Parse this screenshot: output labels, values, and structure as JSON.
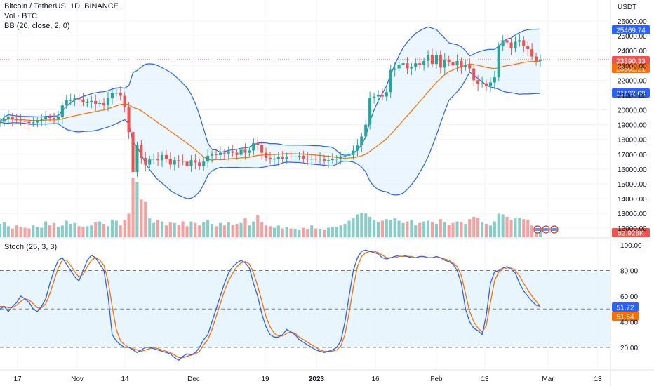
{
  "header": {
    "symbol_line": "Bitcoin / TetherUS, 1D, BINANCE",
    "volume_line": "Vol · BTC",
    "bb_line": "BB (20, close, 2, 0)"
  },
  "stoch_header": {
    "label": "Stoch (25, 3, 3)"
  },
  "colors": {
    "up": "#26a69a",
    "down": "#ef5350",
    "bb_band": "#2962ff",
    "bb_basis": "#ff6d00",
    "bb_fill": "#e3f2fd",
    "stoch_k": "#2962ff",
    "stoch_d": "#ff6d00",
    "stoch_fill": "#e3f2fd",
    "grid": "#f0f3fa",
    "axis_text": "#131722"
  },
  "chart_data": [
    {
      "type": "candlestick",
      "title": "Bitcoin / TetherUS, 1D, BINANCE",
      "y_axis_unit": "USDT",
      "y_ticks": [
        "12000.00",
        "13000.00",
        "14000.00",
        "15000.00",
        "16000.00",
        "17000.00",
        "18000.00",
        "19000.00",
        "20000.00",
        "21000.00",
        "22000.00",
        "23000.00",
        "24000.00",
        "25000.00",
        "26000.00"
      ],
      "ylim": [
        11500,
        26700
      ],
      "x_ticks": [
        "17",
        "Nov",
        "14",
        "Dec",
        "19",
        "2023",
        "16",
        "Feb",
        "13",
        "Mar",
        "13"
      ],
      "price_labels": [
        {
          "value": "25469.74",
          "color": "#2962ff"
        },
        {
          "value": "23390.33",
          "color": "#ef5350"
        },
        {
          "value": "23301.21",
          "color": "#ff6d00"
        },
        {
          "value": "21132.68",
          "color": "#2962ff"
        },
        {
          "value": "52.928K",
          "color": "#ef5350"
        }
      ],
      "last_price": 23390.33,
      "volume_last": "52.928K",
      "close_series": [
        19200,
        19400,
        19550,
        19350,
        19300,
        19250,
        19200,
        19100,
        19150,
        19300,
        19350,
        19500,
        19450,
        19400,
        19500,
        20300,
        20650,
        20650,
        20800,
        20700,
        20500,
        20500,
        20600,
        20400,
        20450,
        20300,
        20800,
        21150,
        21150,
        20950,
        20200,
        18500,
        15800,
        17600,
        16750,
        16300,
        16650,
        16700,
        16600,
        16950,
        16700,
        16300,
        16600,
        16550,
        16500,
        16200,
        16600,
        16450,
        16200,
        16500,
        16900,
        17000,
        16950,
        17100,
        17050,
        17200,
        17100,
        16950,
        17300,
        17100,
        17250,
        17750,
        17650,
        17100,
        16750,
        16650,
        16700,
        16800,
        16700,
        16850,
        16800,
        16850,
        16900,
        16700,
        16650,
        16700,
        16650,
        16700,
        16550,
        16600,
        16650,
        16700,
        16850,
        16900,
        16950,
        17250,
        17600,
        18200,
        19000,
        20800,
        20900,
        21000,
        20900,
        21200,
        22700,
        22800,
        23050,
        23150,
        22800,
        22900,
        23150,
        23050,
        23300,
        23700,
        23100,
        23700,
        22850,
        23400,
        23200,
        23000,
        23300,
        22900,
        23050,
        22800,
        22000,
        21750,
        21800,
        21600,
        21850,
        22200,
        24300,
        24700,
        24550,
        24150,
        24600,
        24700,
        24300,
        24100,
        23600,
        23300,
        23400
      ],
      "bb": {
        "upper_last": 25469.74,
        "basis_last": 23301.21,
        "lower_last": 21132.68
      },
      "volume": [
        34,
        38,
        28,
        22,
        30,
        26,
        24,
        22,
        30,
        26,
        24,
        40,
        30,
        36,
        26,
        30,
        42,
        34,
        36,
        28,
        26,
        28,
        30,
        38,
        40,
        34,
        28,
        44,
        42,
        30,
        44,
        60,
        150,
        140,
        96,
        90,
        48,
        36,
        44,
        40,
        30,
        38,
        36,
        32,
        40,
        28,
        40,
        36,
        30,
        38,
        44,
        34,
        28,
        36,
        30,
        38,
        32,
        34,
        36,
        48,
        30,
        40,
        56,
        38,
        30,
        28,
        24,
        30,
        22,
        26,
        22,
        20,
        18,
        24,
        20,
        30,
        22,
        20,
        18,
        24,
        26,
        26,
        30,
        34,
        42,
        48,
        58,
        62,
        60,
        52,
        44,
        38,
        42,
        46,
        44,
        48,
        42,
        36,
        40,
        44,
        30,
        36,
        40,
        42,
        38,
        34,
        46,
        38,
        32,
        36,
        40,
        38,
        34,
        46,
        52,
        50,
        38,
        34,
        30,
        40,
        60,
        58,
        52,
        44,
        48,
        50,
        46,
        44,
        30,
        26,
        24
      ]
    },
    {
      "type": "line",
      "title": "Stoch (25, 3, 3)",
      "y_ticks": [
        "20.00",
        "40.00",
        "60.00",
        "80.00",
        "100.00"
      ],
      "ylim": [
        0,
        105
      ],
      "bands": [
        20,
        50,
        80
      ],
      "k_last": 51.72,
      "d_last": 51.64,
      "series": [
        {
          "name": "%K",
          "values": [
            50,
            52,
            48,
            52,
            55,
            60,
            58,
            55,
            50,
            48,
            52,
            58,
            70,
            80,
            88,
            90,
            85,
            80,
            75,
            72,
            80,
            88,
            92,
            90,
            85,
            80,
            60,
            30,
            25,
            22,
            20,
            20,
            18,
            16,
            18,
            20,
            20,
            19,
            18,
            17,
            16,
            15,
            12,
            10,
            13,
            15,
            14,
            16,
            20,
            26,
            30,
            40,
            50,
            60,
            70,
            78,
            83,
            86,
            88,
            86,
            82,
            70,
            60,
            46,
            36,
            30,
            28,
            28,
            30,
            34,
            32,
            30,
            26,
            24,
            22,
            20,
            18,
            17,
            16,
            17,
            18,
            20,
            25,
            40,
            60,
            80,
            90,
            95,
            96,
            95,
            94,
            93,
            90,
            89,
            90,
            91,
            92,
            92,
            91,
            90,
            90,
            91,
            91,
            90,
            90,
            91,
            90,
            88,
            87,
            85,
            80,
            70,
            50,
            40,
            35,
            33,
            30,
            45,
            70,
            79,
            80,
            82,
            83,
            81,
            78,
            70,
            64,
            60,
            56,
            53,
            52
          ]
        },
        {
          "name": "%D",
          "values": [
            52,
            52,
            51,
            51,
            53,
            56,
            58,
            57,
            54,
            51,
            51,
            54,
            62,
            72,
            82,
            88,
            88,
            84,
            79,
            75,
            77,
            83,
            88,
            90,
            88,
            84,
            72,
            52,
            34,
            25,
            22,
            20,
            19,
            18,
            17,
            18,
            19,
            20,
            19,
            18,
            17,
            16,
            14,
            12,
            12,
            13,
            14,
            15,
            17,
            22,
            26,
            34,
            44,
            54,
            64,
            72,
            78,
            83,
            86,
            87,
            85,
            78,
            68,
            56,
            44,
            36,
            31,
            29,
            29,
            31,
            32,
            31,
            28,
            26,
            24,
            22,
            20,
            18,
            17,
            17,
            17,
            18,
            21,
            30,
            47,
            67,
            83,
            91,
            94,
            95,
            95,
            94,
            92,
            90,
            90,
            90,
            91,
            91,
            91,
            91,
            90,
            90,
            90,
            90,
            90,
            90,
            90,
            89,
            88,
            86,
            83,
            76,
            62,
            48,
            40,
            35,
            32,
            37,
            55,
            72,
            79,
            81,
            82,
            82,
            80,
            76,
            70,
            65,
            60,
            56,
            52
          ]
        }
      ]
    }
  ]
}
